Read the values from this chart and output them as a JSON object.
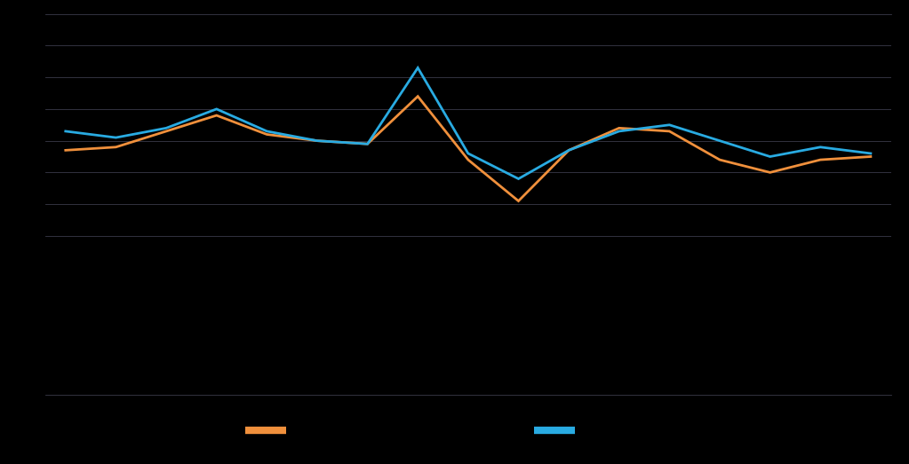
{
  "orange_values": [
    37,
    38,
    43,
    48,
    42,
    40,
    39,
    54,
    34,
    21,
    37,
    44,
    43,
    34,
    30,
    34,
    35
  ],
  "blue_values": [
    43,
    41,
    44,
    50,
    43,
    40,
    39,
    63,
    36,
    28,
    37,
    43,
    45,
    40,
    35,
    38,
    36
  ],
  "orange_color": "#f0903c",
  "blue_color": "#29abe2",
  "background_color": "#000000",
  "plot_bg_color": "#000000",
  "grid_color": "#3a3a4a",
  "ylim": [
    -40,
    80
  ],
  "yticks": [
    80,
    70,
    60,
    50,
    40,
    30,
    20,
    10,
    0,
    -10,
    -20,
    -30,
    -40
  ],
  "grid_yticks": [
    70,
    60,
    50,
    40,
    30,
    20,
    10
  ],
  "n_points": 17
}
